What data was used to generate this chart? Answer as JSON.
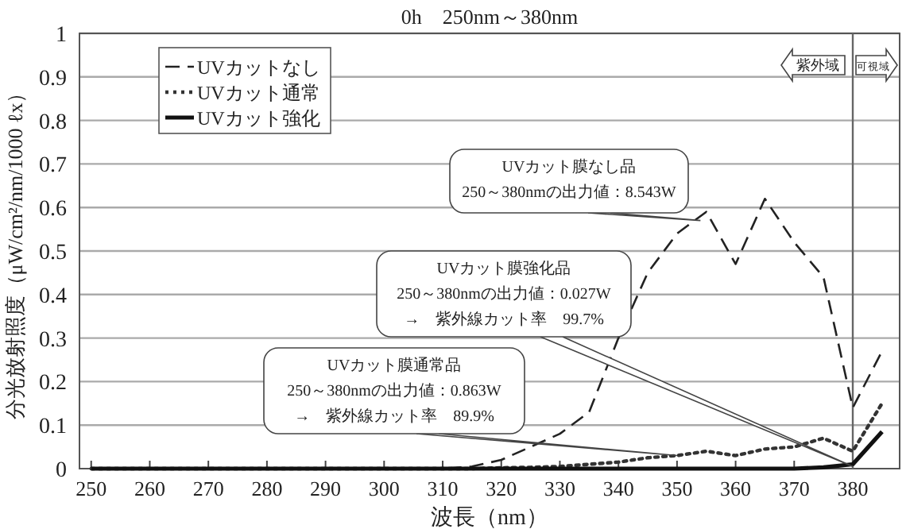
{
  "chart_data": {
    "type": "line",
    "title": "0h　250nm～380nm",
    "xlabel": "波長（nm）",
    "ylabel": "分光放射照度（μW/cm²/nm/1000 ℓx）",
    "xlim": [
      248,
      388
    ],
    "xticks": [
      250,
      260,
      270,
      280,
      290,
      300,
      310,
      320,
      330,
      340,
      350,
      360,
      370,
      380
    ],
    "ylim": [
      0,
      1
    ],
    "yticks": [
      0,
      0.1,
      0.2,
      0.3,
      0.4,
      0.5,
      0.6,
      0.7,
      0.8,
      0.9,
      1
    ],
    "x": [
      250,
      255,
      260,
      265,
      270,
      275,
      280,
      285,
      290,
      295,
      300,
      305,
      310,
      315,
      320,
      325,
      330,
      335,
      340,
      345,
      350,
      355,
      360,
      365,
      370,
      375,
      380,
      385
    ],
    "series": [
      {
        "name": "UVカットなし",
        "color": "#222222",
        "line_style": "dashed",
        "values": [
          0,
          0,
          0,
          0,
          0,
          0,
          0,
          0,
          0,
          0,
          0,
          0,
          0,
          0.005,
          0.02,
          0.05,
          0.08,
          0.13,
          0.3,
          0.45,
          0.54,
          0.59,
          0.47,
          0.62,
          0.52,
          0.44,
          0.14,
          0.27
        ]
      },
      {
        "name": "UVカット通常",
        "color": "#333333",
        "line_style": "dotted",
        "values": [
          0,
          0,
          0,
          0,
          0,
          0,
          0,
          0,
          0,
          0,
          0,
          0,
          0,
          0,
          0.002,
          0.003,
          0.005,
          0.01,
          0.015,
          0.025,
          0.03,
          0.04,
          0.03,
          0.045,
          0.05,
          0.07,
          0.04,
          0.15
        ]
      },
      {
        "name": "UVカット強化",
        "color": "#111111",
        "line_style": "solid",
        "values": [
          0,
          0,
          0,
          0,
          0,
          0,
          0,
          0,
          0,
          0,
          0,
          0,
          0,
          0,
          0,
          0,
          0,
          0,
          0,
          0,
          0,
          0,
          0,
          0,
          0,
          0.003,
          0.01,
          0.085
        ]
      }
    ],
    "ref_lines": [
      {
        "axis": "x",
        "value": 380,
        "color": "#666666"
      }
    ],
    "annotations": [
      {
        "text": "UVカット膜なし品\n250～380nmの出力値：8.543W",
        "x": 354,
        "y": 0.57
      },
      {
        "text": "UVカット膜強化品\n250～380nmの出力値：0.027W\n→　紫外線カット率　99.7%",
        "x": 380,
        "y": 0.005
      },
      {
        "text": "UVカット膜通常品\n250～380nmの出力値：0.863W\n→　紫外線カット率　89.9%",
        "x": 350,
        "y": 0.03
      },
      "紫外域",
      "可視域"
    ],
    "grid": "y",
    "legend": "top left"
  }
}
